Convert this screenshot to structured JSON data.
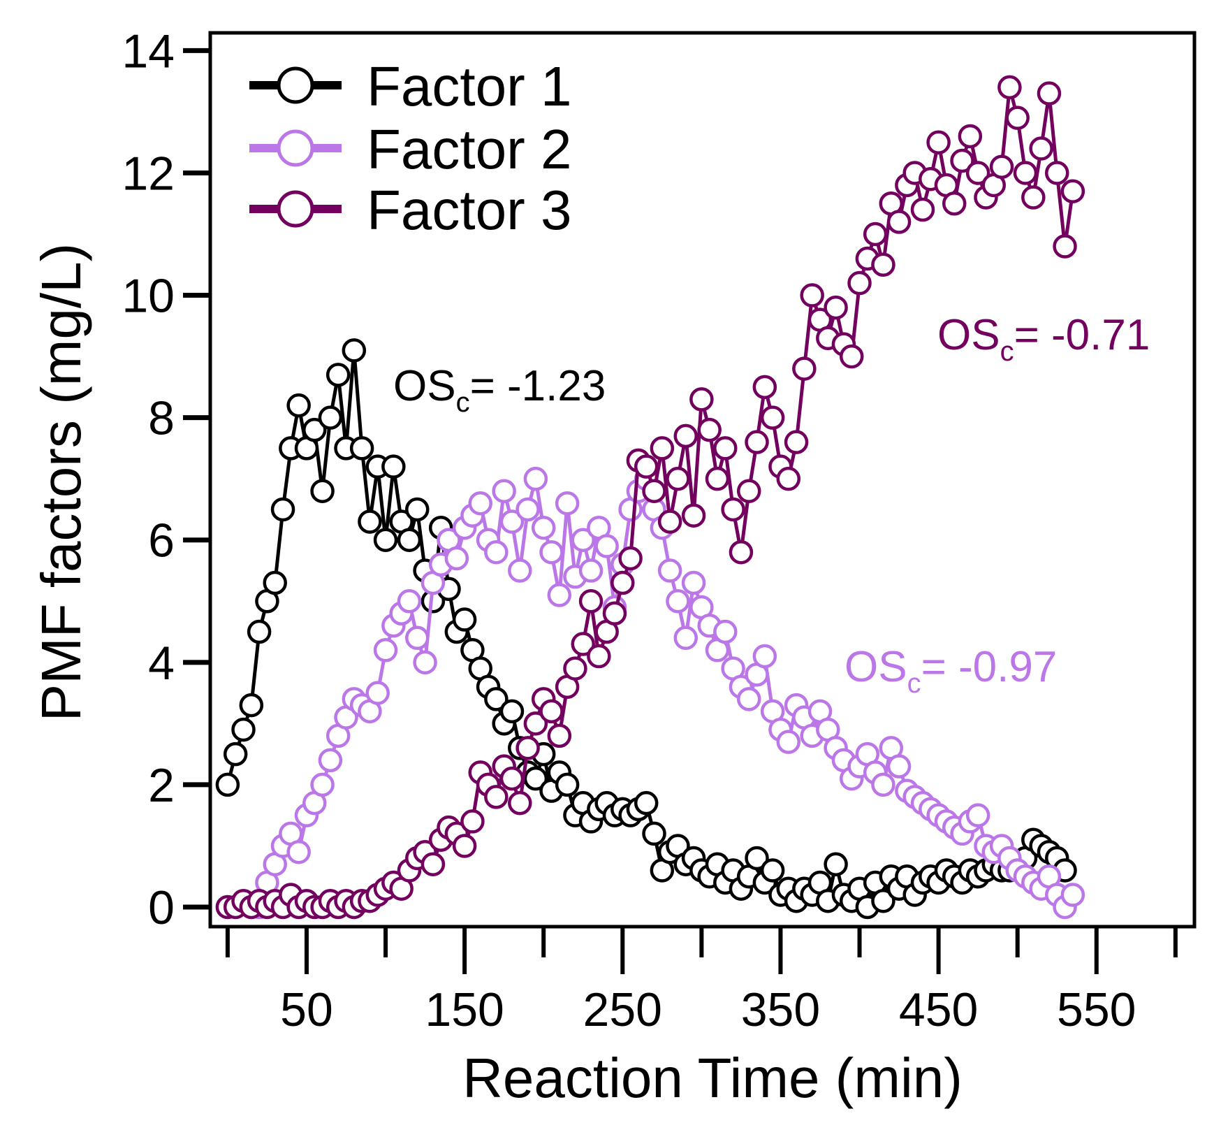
{
  "chart_data": {
    "type": "line",
    "xlabel": "Reaction Time (min)",
    "ylabel": "PMF factors (mg/L)",
    "xlim": [
      -11,
      612
    ],
    "ylim": [
      -0.32,
      14.29
    ],
    "x_major_ticks": [
      50,
      150,
      250,
      350,
      450,
      550
    ],
    "x_minor_ticks": [
      0,
      100,
      200,
      300,
      400,
      500,
      600
    ],
    "y_ticks": [
      0,
      2,
      4,
      6,
      8,
      10,
      12,
      14
    ],
    "grid": false,
    "legend_position": "top-left",
    "series": [
      {
        "name": "Factor 1",
        "color": "#000000",
        "x_start": 0,
        "x_step": 5,
        "values": [
          2.0,
          2.5,
          2.9,
          3.3,
          4.5,
          5.0,
          5.3,
          6.5,
          7.5,
          8.2,
          7.5,
          7.8,
          6.8,
          8.0,
          8.7,
          7.5,
          9.1,
          7.5,
          6.3,
          7.2,
          6.0,
          7.2,
          6.3,
          6.0,
          6.5,
          5.5,
          5.0,
          6.2,
          5.2,
          4.5,
          4.7,
          4.2,
          3.9,
          3.6,
          3.4,
          3.0,
          3.2,
          2.6,
          2.2,
          2.1,
          2.5,
          1.9,
          2.2,
          2.0,
          1.5,
          1.7,
          1.4,
          1.6,
          1.7,
          1.5,
          1.6,
          1.5,
          1.6,
          1.7,
          1.2,
          0.6,
          0.9,
          1.0,
          0.7,
          0.8,
          0.6,
          0.5,
          0.7,
          0.4,
          0.6,
          0.3,
          0.5,
          0.8,
          0.4,
          0.6,
          0.2,
          0.3,
          0.1,
          0.3,
          0.2,
          0.4,
          0.1,
          0.7,
          0.2,
          0.1,
          0.3,
          0.0,
          0.4,
          0.1,
          0.5,
          0.3,
          0.5,
          0.2,
          0.4,
          0.5,
          0.4,
          0.6,
          0.5,
          0.4,
          0.6,
          0.5,
          0.6,
          0.7,
          0.6,
          0.6,
          0.7,
          0.8,
          1.1,
          1.0,
          0.9,
          0.8,
          0.6
        ]
      },
      {
        "name": "Factor 2",
        "color": "#bb77e8",
        "x_start": 20,
        "x_step": 5,
        "values": [
          0.0,
          0.4,
          0.7,
          1.0,
          1.2,
          0.9,
          1.5,
          1.7,
          2.0,
          2.4,
          2.8,
          3.1,
          3.4,
          3.3,
          3.2,
          3.5,
          4.2,
          4.6,
          4.8,
          5.0,
          4.4,
          4.0,
          5.3,
          5.6,
          6.0,
          5.7,
          6.2,
          6.4,
          6.6,
          6.0,
          5.8,
          6.8,
          6.3,
          5.5,
          6.5,
          7.0,
          6.2,
          5.8,
          5.1,
          6.6,
          5.4,
          6.0,
          5.5,
          6.2,
          5.9,
          4.9,
          5.6,
          6.5,
          6.8,
          7.0,
          6.5,
          6.2,
          5.5,
          5.0,
          4.4,
          5.3,
          4.9,
          4.6,
          4.2,
          4.5,
          3.9,
          3.6,
          3.4,
          3.8,
          4.1,
          3.2,
          2.9,
          2.7,
          3.3,
          3.1,
          2.8,
          3.2,
          2.9,
          2.6,
          2.4,
          2.1,
          2.3,
          2.5,
          2.2,
          2.0,
          2.6,
          2.3,
          1.9,
          1.8,
          1.7,
          1.6,
          1.5,
          1.4,
          1.3,
          1.2,
          1.4,
          1.5,
          1.0,
          0.9,
          1.0,
          0.8,
          0.6,
          0.5,
          0.4,
          0.3,
          0.5,
          0.2,
          0.0,
          0.2
        ]
      },
      {
        "name": "Factor 3",
        "color": "#73005f",
        "x_start": 0,
        "x_step": 5,
        "values": [
          0.0,
          0.0,
          0.1,
          0.0,
          0.1,
          0.0,
          0.1,
          0.0,
          0.2,
          0.0,
          0.1,
          0.0,
          0.0,
          0.1,
          0.0,
          0.1,
          0.0,
          0.1,
          0.1,
          0.2,
          0.3,
          0.4,
          0.3,
          0.6,
          0.8,
          0.9,
          0.7,
          1.1,
          1.3,
          1.2,
          1.0,
          1.4,
          2.2,
          2.0,
          1.8,
          2.3,
          2.1,
          1.7,
          2.6,
          3.0,
          3.4,
          3.2,
          2.8,
          3.6,
          3.9,
          4.3,
          5.0,
          4.1,
          4.5,
          4.8,
          5.3,
          5.7,
          7.3,
          7.2,
          6.8,
          7.5,
          6.3,
          7.0,
          7.7,
          6.4,
          8.3,
          7.8,
          7.0,
          7.5,
          6.5,
          5.8,
          6.8,
          7.6,
          8.5,
          8.0,
          7.2,
          7.0,
          7.6,
          8.8,
          10.0,
          9.6,
          9.3,
          9.8,
          9.2,
          9.0,
          10.2,
          10.6,
          11.0,
          10.5,
          11.5,
          11.2,
          11.8,
          12.0,
          11.4,
          11.9,
          12.5,
          11.8,
          11.5,
          12.2,
          12.6,
          12.0,
          11.6,
          11.8,
          12.1,
          13.4,
          12.9,
          12.0,
          11.6,
          12.4,
          13.3,
          12.0,
          10.8,
          11.7
        ]
      }
    ],
    "annotations": [
      {
        "prefix": "OS",
        "sub": "c",
        "text": "= -1.23",
        "color": "#000000",
        "series": "Factor 1"
      },
      {
        "prefix": "OS",
        "sub": "c",
        "text": "= -0.97",
        "color": "#bb77e8",
        "series": "Factor 2"
      },
      {
        "prefix": "OS",
        "sub": "c",
        "text": "= -0.71",
        "color": "#73005f",
        "series": "Factor 3"
      }
    ]
  }
}
